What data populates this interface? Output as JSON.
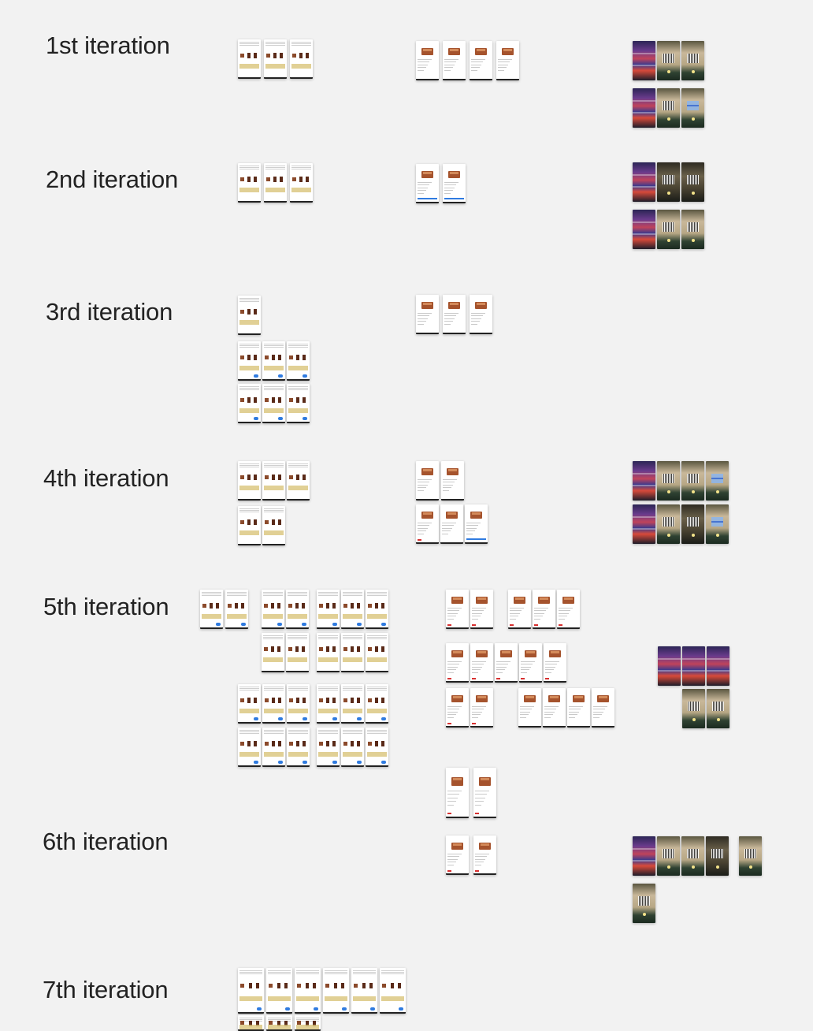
{
  "iterations": [
    {
      "label": "1st iteration"
    },
    {
      "label": "2nd iteration"
    },
    {
      "label": "3rd iteration"
    },
    {
      "label": "4th iteration"
    },
    {
      "label": "5th iteration"
    },
    {
      "label": "6th iteration"
    },
    {
      "label": "7th iteration"
    }
  ],
  "screen_types": [
    "product-list-screen",
    "product-detail-screen",
    "camera-shelf-screen",
    "camera-barcode-screen"
  ]
}
